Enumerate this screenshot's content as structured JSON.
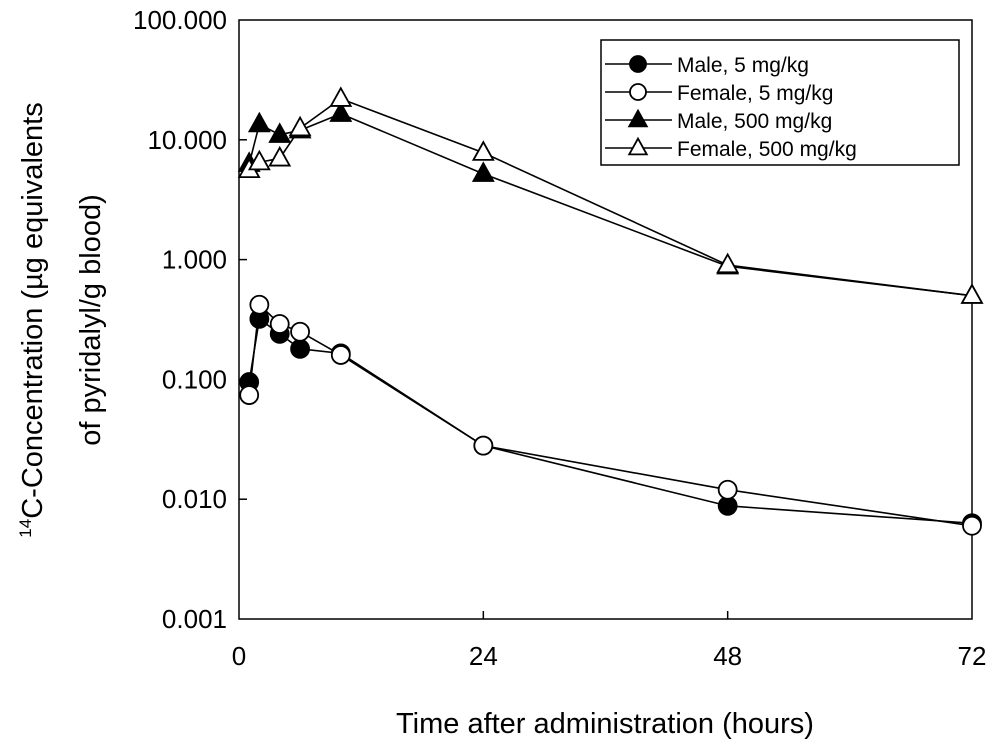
{
  "chart_data": {
    "type": "line",
    "title": "",
    "xlabel": "Time after administration (hours)",
    "ylabel_line1_sup": "14",
    "ylabel_line1": "C-Concentration (µg equivalents",
    "ylabel_line2": "of pyridalyl/g blood)",
    "xlim": [
      0,
      72
    ],
    "ylim": [
      0.001,
      100
    ],
    "y_scale": "log",
    "x_ticks": [
      0,
      24,
      48,
      72
    ],
    "x_tick_labels": [
      "0",
      "24",
      "48",
      "72"
    ],
    "y_ticks": [
      0.001,
      0.01,
      0.1,
      1,
      10,
      100
    ],
    "y_tick_labels": [
      "0.001",
      "0.010",
      "0.100",
      "1.000",
      "10.000",
      "100.000"
    ],
    "legend_position": "top-right",
    "series": [
      {
        "name": "Male, 5 mg/kg",
        "marker": "circle",
        "fill": "#000000",
        "x": [
          1,
          2,
          4,
          6,
          10,
          24,
          48,
          72
        ],
        "y": [
          0.095,
          0.32,
          0.24,
          0.18,
          0.165,
          0.028,
          0.0088,
          0.0063
        ]
      },
      {
        "name": "Female, 5 mg/kg",
        "marker": "circle",
        "fill": "#ffffff",
        "x": [
          1,
          2,
          4,
          6,
          10,
          24,
          48,
          72
        ],
        "y": [
          0.074,
          0.42,
          0.29,
          0.25,
          0.16,
          0.028,
          0.012,
          0.006
        ]
      },
      {
        "name": "Male, 500 mg/kg",
        "marker": "triangle",
        "fill": "#000000",
        "x": [
          1,
          2,
          4,
          6,
          10,
          24,
          48,
          72
        ],
        "y": [
          6.3,
          13.5,
          11.0,
          12.0,
          16.5,
          5.2,
          0.88,
          0.5
        ]
      },
      {
        "name": "Female, 500 mg/kg",
        "marker": "triangle",
        "fill": "#ffffff",
        "x": [
          1,
          2,
          4,
          6,
          10,
          24,
          48,
          72
        ],
        "y": [
          5.6,
          6.5,
          7.0,
          12.5,
          22.0,
          7.8,
          0.9,
          0.5
        ]
      }
    ]
  }
}
